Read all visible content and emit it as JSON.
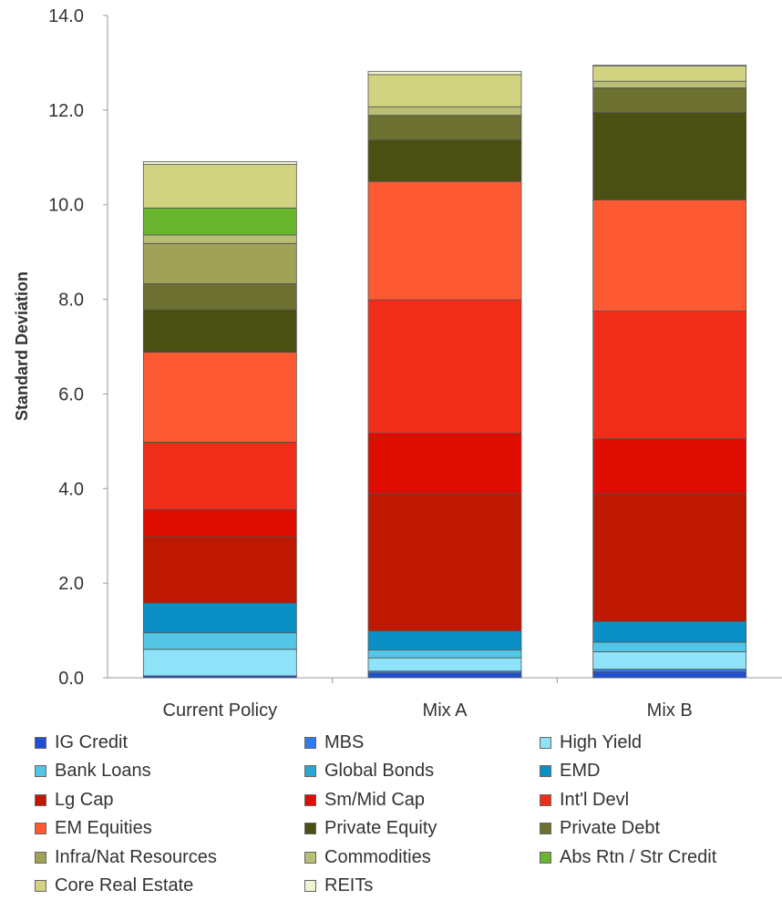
{
  "chart_data": {
    "type": "bar",
    "stacked": true,
    "categories": [
      "Current Policy",
      "Mix A",
      "Mix B"
    ],
    "ylabel": "Standard Deviation",
    "ylim": [
      0,
      14
    ],
    "yticks": [
      "0.0",
      "2.0",
      "4.0",
      "6.0",
      "8.0",
      "10.0",
      "12.0",
      "14.0"
    ],
    "series": [
      {
        "name": "IG Credit",
        "color": "#1f4fd6",
        "values": [
          0.04,
          0.1,
          0.12
        ]
      },
      {
        "name": "MBS",
        "color": "#2f7bf0",
        "values": [
          0.0,
          0.04,
          0.06
        ]
      },
      {
        "name": "High Yield",
        "color": "#8ee3f8",
        "values": [
          0.56,
          0.28,
          0.37
        ]
      },
      {
        "name": "Bank Loans",
        "color": "#53c6e6",
        "values": [
          0.35,
          0.17,
          0.2
        ]
      },
      {
        "name": "Global Bonds",
        "color": "#2aa8d2",
        "values": [
          0.0,
          0.0,
          0.0
        ]
      },
      {
        "name": "EMD",
        "color": "#0a90c6",
        "values": [
          0.63,
          0.4,
          0.44
        ]
      },
      {
        "name": "Lg Cap",
        "color": "#bf1800",
        "values": [
          1.4,
          2.9,
          2.7
        ]
      },
      {
        "name": "Sm/Mid Cap",
        "color": "#df0c00",
        "values": [
          0.58,
          1.28,
          1.16
        ]
      },
      {
        "name": "Int'l Devl",
        "color": "#f02d18",
        "values": [
          1.42,
          2.82,
          2.7
        ]
      },
      {
        "name": "EM Equities",
        "color": "#fd5932",
        "values": [
          1.9,
          2.5,
          2.35
        ]
      },
      {
        "name": "Private Equity",
        "color": "#4a5012",
        "values": [
          0.9,
          0.88,
          1.85
        ]
      },
      {
        "name": "Private Debt",
        "color": "#6c7030",
        "values": [
          0.55,
          0.52,
          0.52
        ]
      },
      {
        "name": "Infra/Nat Resources",
        "color": "#a0a258",
        "values": [
          0.85,
          0.0,
          0.0
        ]
      },
      {
        "name": "Commodities",
        "color": "#b8be74",
        "values": [
          0.18,
          0.18,
          0.14
        ]
      },
      {
        "name": "Abs Rtn / Str Credit",
        "color": "#6ab52e",
        "values": [
          0.57,
          0.0,
          0.0
        ]
      },
      {
        "name": "Core Real Estate",
        "color": "#d2d381",
        "values": [
          0.92,
          0.68,
          0.32
        ]
      },
      {
        "name": "REITs",
        "color": "#eef3d6",
        "values": [
          0.06,
          0.07,
          0.02
        ]
      }
    ],
    "grid": false,
    "legend": "bottom"
  }
}
